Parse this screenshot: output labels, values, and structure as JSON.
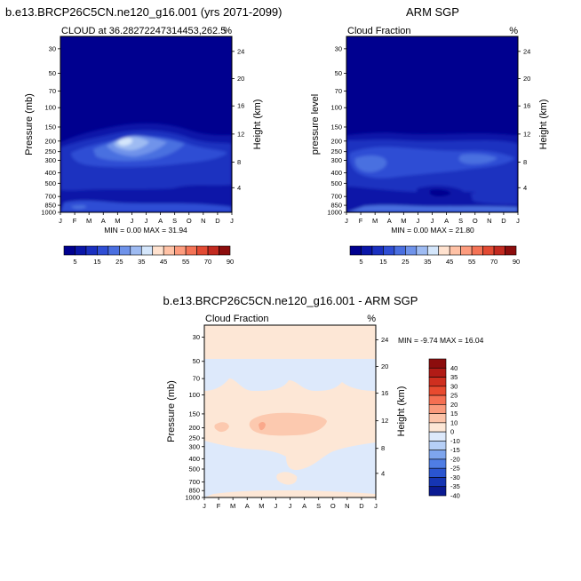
{
  "chart_data": [
    {
      "type": "contour",
      "title": "b.e13.BRCP26C5CN.ne120_g16.001 (yrs 2071-2099)",
      "left_label": "CLOUD at 36.28272247314453,262.5",
      "right_label": "%",
      "ylabel": "Pressure (mb)",
      "ylabel_right": "Height (km)",
      "months": [
        "J",
        "F",
        "M",
        "A",
        "M",
        "J",
        "J",
        "A",
        "S",
        "O",
        "N",
        "D",
        "J"
      ],
      "pressure_ticks": [
        "30",
        "50",
        "70",
        "100",
        "150",
        "200",
        "250",
        "300",
        "400",
        "500",
        "700",
        "850",
        "1000"
      ],
      "height_ticks": [
        "24",
        "20",
        "16",
        "12",
        "8",
        "4"
      ],
      "minmax_text": "MIN =   0.00 MAX =  31.94",
      "colorbar": {
        "labels": [
          "5",
          "15",
          "25",
          "35",
          "45",
          "55",
          "70",
          "90"
        ]
      }
    },
    {
      "type": "contour",
      "title": "ARM SGP",
      "left_label": "Cloud Fraction",
      "right_label": "%",
      "ylabel": "pressure level",
      "ylabel_right": "Height (km)",
      "months": [
        "J",
        "F",
        "M",
        "A",
        "M",
        "J",
        "J",
        "A",
        "S",
        "O",
        "N",
        "D",
        "J"
      ],
      "pressure_ticks": [
        "30",
        "50",
        "70",
        "100",
        "150",
        "200",
        "250",
        "300",
        "400",
        "500",
        "700",
        "850",
        "1000"
      ],
      "height_ticks": [
        "24",
        "20",
        "16",
        "12",
        "8",
        "4"
      ],
      "minmax_text": "MIN =   0.00 MAX =  21.80",
      "colorbar": {
        "labels": [
          "5",
          "15",
          "25",
          "35",
          "45",
          "55",
          "70",
          "90"
        ]
      }
    },
    {
      "type": "contour",
      "title": "b.e13.BRCP26C5CN.ne120_g16.001 - ARM SGP",
      "left_label": "Cloud Fraction",
      "right_label": "%",
      "ylabel": "Pressure (mb)",
      "ylabel_right": "Height (km)",
      "months": [
        "J",
        "F",
        "M",
        "A",
        "M",
        "J",
        "J",
        "A",
        "S",
        "O",
        "N",
        "D",
        "J"
      ],
      "pressure_ticks": [
        "30",
        "50",
        "70",
        "100",
        "150",
        "200",
        "250",
        "300",
        "400",
        "500",
        "700",
        "850",
        "1000"
      ],
      "height_ticks": [
        "24",
        "20",
        "16",
        "12",
        "8",
        "4"
      ],
      "minmax_text": "MIN =  -9.74 MAX =  16.04",
      "colorbar": {
        "labels": [
          "40",
          "35",
          "30",
          "25",
          "20",
          "15",
          "10",
          "0",
          "-10",
          "-15",
          "-20",
          "-25",
          "-30",
          "-35",
          "-40"
        ]
      }
    }
  ],
  "colors": {
    "abs_scale": [
      "#00008f",
      "#0a16a8",
      "#1a30c0",
      "#2f4ed4",
      "#4a6fe0",
      "#6f93ea",
      "#9ebbf2",
      "#d4e6fb",
      "#ffe2cf",
      "#ffc2a6",
      "#fd9c7e",
      "#f47356",
      "#e24a33",
      "#c22a20",
      "#8c0d0d"
    ],
    "diff_scale": [
      "#8c0d0d",
      "#b11b16",
      "#cf2f1f",
      "#e84a2f",
      "#f56f52",
      "#fa9a7c",
      "#fcc3a8",
      "#fde7d6",
      "#dde9fb",
      "#b6cff6",
      "#7ea5ed",
      "#4f7de4",
      "#2a55d0",
      "#1535b3",
      "#0a1a92"
    ]
  }
}
